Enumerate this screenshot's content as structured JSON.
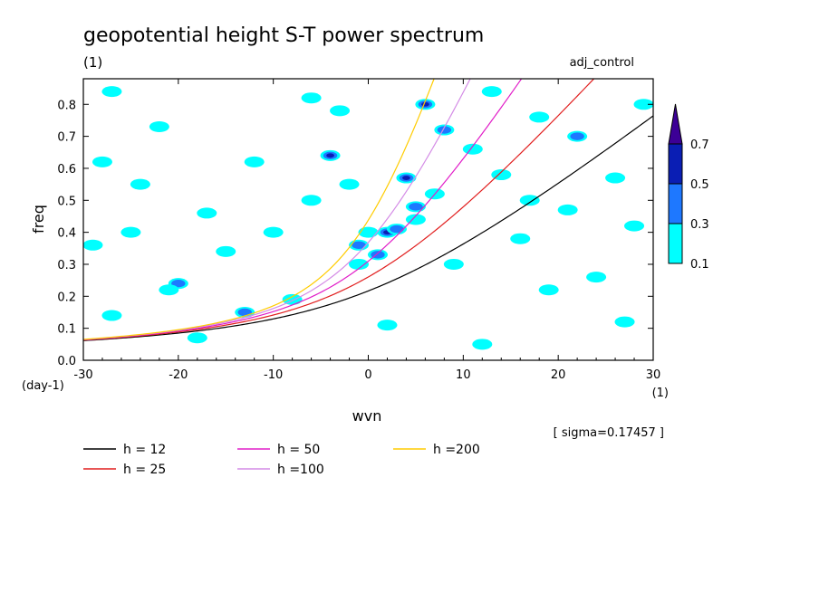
{
  "chart_data": {
    "type": "heatmap",
    "title": "geopotential height S-T power spectrum",
    "subtitle_left": "(1)",
    "subtitle_right": "adj_control",
    "xlabel": "wvn",
    "ylabel": "freq",
    "x_unit": "(1)",
    "y_unit": "(day-1)",
    "xlim": [
      -30,
      30
    ],
    "ylim": [
      0,
      0.88
    ],
    "xticks": [
      -30,
      -20,
      -10,
      0,
      10,
      20,
      30
    ],
    "xtick_labels": [
      "-30",
      "-20",
      "-10",
      "0",
      "10",
      "20",
      "30"
    ],
    "yticks": [
      0,
      0.1,
      0.2,
      0.3,
      0.4,
      0.5,
      0.6,
      0.7,
      0.8
    ],
    "ytick_labels": [
      "0.0",
      "0.1",
      "0.2",
      "0.3",
      "0.4",
      "0.5",
      "0.6",
      "0.7",
      "0.8"
    ],
    "sigma_text": "[ sigma=0.17457 ]",
    "colorbar": {
      "levels": [
        0.1,
        0.3,
        0.5,
        0.7
      ],
      "labels": [
        "0.1",
        "0.3",
        "0.5",
        "0.7"
      ],
      "colors": [
        "#00ffff",
        "#1e78ff",
        "#0a1eb4",
        "#3c0096"
      ]
    },
    "shaded_patches": [
      {
        "x": -27,
        "y": 0.84,
        "level": 1
      },
      {
        "x": -22,
        "y": 0.73,
        "level": 1
      },
      {
        "x": -28,
        "y": 0.62,
        "level": 1
      },
      {
        "x": -24,
        "y": 0.55,
        "level": 1
      },
      {
        "x": -25,
        "y": 0.4,
        "level": 1
      },
      {
        "x": -29,
        "y": 0.36,
        "level": 1
      },
      {
        "x": -20,
        "y": 0.24,
        "level": 2
      },
      {
        "x": -21,
        "y": 0.22,
        "level": 1
      },
      {
        "x": -27,
        "y": 0.14,
        "level": 1
      },
      {
        "x": -17,
        "y": 0.46,
        "level": 1
      },
      {
        "x": -15,
        "y": 0.34,
        "level": 1
      },
      {
        "x": -13,
        "y": 0.15,
        "level": 2
      },
      {
        "x": -12,
        "y": 0.62,
        "level": 1
      },
      {
        "x": -10,
        "y": 0.4,
        "level": 1
      },
      {
        "x": -8,
        "y": 0.19,
        "level": 1
      },
      {
        "x": -6,
        "y": 0.82,
        "level": 1
      },
      {
        "x": -4,
        "y": 0.64,
        "level": 3
      },
      {
        "x": -3,
        "y": 0.78,
        "level": 1
      },
      {
        "x": -2,
        "y": 0.55,
        "level": 1
      },
      {
        "x": -1,
        "y": 0.3,
        "level": 1
      },
      {
        "x": -1,
        "y": 0.36,
        "level": 2
      },
      {
        "x": 0,
        "y": 0.4,
        "level": 1
      },
      {
        "x": 1,
        "y": 0.33,
        "level": 2
      },
      {
        "x": 2,
        "y": 0.4,
        "level": 3
      },
      {
        "x": 3,
        "y": 0.41,
        "level": 2
      },
      {
        "x": 4,
        "y": 0.57,
        "level": 3
      },
      {
        "x": 5,
        "y": 0.48,
        "level": 2
      },
      {
        "x": 5,
        "y": 0.44,
        "level": 1
      },
      {
        "x": 6,
        "y": 0.8,
        "level": 3
      },
      {
        "x": 7,
        "y": 0.52,
        "level": 1
      },
      {
        "x": 8,
        "y": 0.72,
        "level": 2
      },
      {
        "x": 9,
        "y": 0.3,
        "level": 1
      },
      {
        "x": 11,
        "y": 0.66,
        "level": 1
      },
      {
        "x": 13,
        "y": 0.84,
        "level": 1
      },
      {
        "x": 14,
        "y": 0.58,
        "level": 1
      },
      {
        "x": 16,
        "y": 0.38,
        "level": 1
      },
      {
        "x": 18,
        "y": 0.76,
        "level": 1
      },
      {
        "x": 19,
        "y": 0.22,
        "level": 1
      },
      {
        "x": 21,
        "y": 0.47,
        "level": 1
      },
      {
        "x": 22,
        "y": 0.7,
        "level": 2
      },
      {
        "x": 24,
        "y": 0.26,
        "level": 1
      },
      {
        "x": 26,
        "y": 0.57,
        "level": 1
      },
      {
        "x": 27,
        "y": 0.12,
        "level": 1
      },
      {
        "x": 28,
        "y": 0.42,
        "level": 1
      },
      {
        "x": 29,
        "y": 0.8,
        "level": 1
      },
      {
        "x": -18,
        "y": 0.07,
        "level": 1
      },
      {
        "x": 2,
        "y": 0.11,
        "level": 1
      },
      {
        "x": 12,
        "y": 0.05,
        "level": 1
      },
      {
        "x": -6,
        "y": 0.5,
        "level": 1
      },
      {
        "x": 17,
        "y": 0.5,
        "level": 1
      }
    ],
    "series": [
      {
        "name": "h = 12",
        "label": "h = 12",
        "color": "#000000",
        "h": 12
      },
      {
        "name": "h = 25",
        "label": "h = 25",
        "color": "#e11e1e",
        "h": 25
      },
      {
        "name": "h = 50",
        "label": "h = 50",
        "color": "#e11ec8",
        "h": 50
      },
      {
        "name": "h =100",
        "label": "h =100",
        "color": "#d48ce6",
        "h": 100
      },
      {
        "name": "h =200",
        "label": "h =200",
        "color": "#ffcc00",
        "h": 200
      }
    ]
  }
}
